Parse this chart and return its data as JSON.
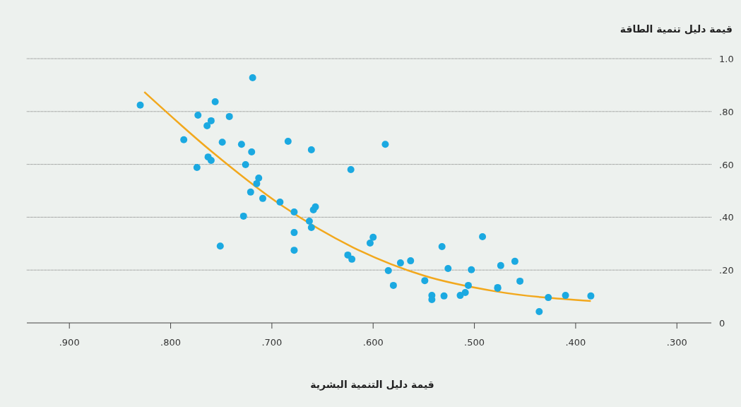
{
  "chart_data": {
    "type": "scatter",
    "xlabel": "قيمة دليل التنمية البشرية",
    "ylabel": "قيمة دليل تنمية الطاقة",
    "xlim": [
      0.942,
      0.266
    ],
    "xticks": [
      {
        "value": 0.9,
        "label": ".900"
      },
      {
        "value": 0.8,
        "label": ".800"
      },
      {
        "value": 0.7,
        "label": ".700"
      },
      {
        "value": 0.6,
        "label": ".600"
      },
      {
        "value": 0.5,
        "label": ".500"
      },
      {
        "value": 0.4,
        "label": ".400"
      },
      {
        "value": 0.3,
        "label": ".300"
      }
    ],
    "ylim": [
      0,
      1
    ],
    "yticks": [
      {
        "value": 0,
        "label": "0"
      },
      {
        "value": 0.2,
        "label": ".20"
      },
      {
        "value": 0.4,
        "label": ".40"
      },
      {
        "value": 0.6,
        "label": ".60"
      },
      {
        "value": 0.8,
        "label": ".80"
      },
      {
        "value": 1,
        "label": "1.0"
      }
    ],
    "grid": "y",
    "marker": "circle",
    "series": [
      {
        "type": "scatter",
        "color": "#1ba9e1",
        "x": [
          0.83,
          0.787,
          0.773,
          0.774,
          0.764,
          0.76,
          0.763,
          0.76,
          0.756,
          0.749,
          0.751,
          0.742,
          0.73,
          0.726,
          0.72,
          0.719,
          0.721,
          0.715,
          0.713,
          0.728,
          0.709,
          0.692,
          0.684,
          0.678,
          0.678,
          0.678,
          0.663,
          0.661,
          0.661,
          0.659,
          0.657,
          0.625,
          0.621,
          0.622,
          0.603,
          0.6,
          0.588,
          0.585,
          0.58,
          0.573,
          0.563,
          0.549,
          0.542,
          0.542,
          0.532,
          0.53,
          0.526,
          0.514,
          0.509,
          0.506,
          0.503,
          0.492,
          0.477,
          0.477,
          0.474,
          0.46,
          0.455,
          0.436,
          0.427,
          0.41,
          0.385
        ],
        "values": [
          0.824,
          0.693,
          0.786,
          0.588,
          0.746,
          0.765,
          0.628,
          0.615,
          0.837,
          0.684,
          0.291,
          0.781,
          0.676,
          0.599,
          0.647,
          0.928,
          0.495,
          0.527,
          0.548,
          0.404,
          0.471,
          0.457,
          0.687,
          0.42,
          0.342,
          0.275,
          0.385,
          0.361,
          0.655,
          0.428,
          0.439,
          0.257,
          0.241,
          0.58,
          0.302,
          0.324,
          0.676,
          0.198,
          0.142,
          0.227,
          0.235,
          0.16,
          0.104,
          0.088,
          0.289,
          0.102,
          0.206,
          0.104,
          0.115,
          0.142,
          0.201,
          0.326,
          0.134,
          0.131,
          0.217,
          0.233,
          0.158,
          0.043,
          0.096,
          0.104,
          0.102
        ]
      },
      {
        "type": "line",
        "color": "#f2a81d",
        "marker": "none",
        "x": [
          0.826,
          0.759,
          0.689,
          0.62,
          0.55,
          0.48,
          0.385
        ],
        "values": [
          0.874,
          0.647,
          0.441,
          0.286,
          0.179,
          0.12,
          0.083
        ]
      }
    ]
  }
}
